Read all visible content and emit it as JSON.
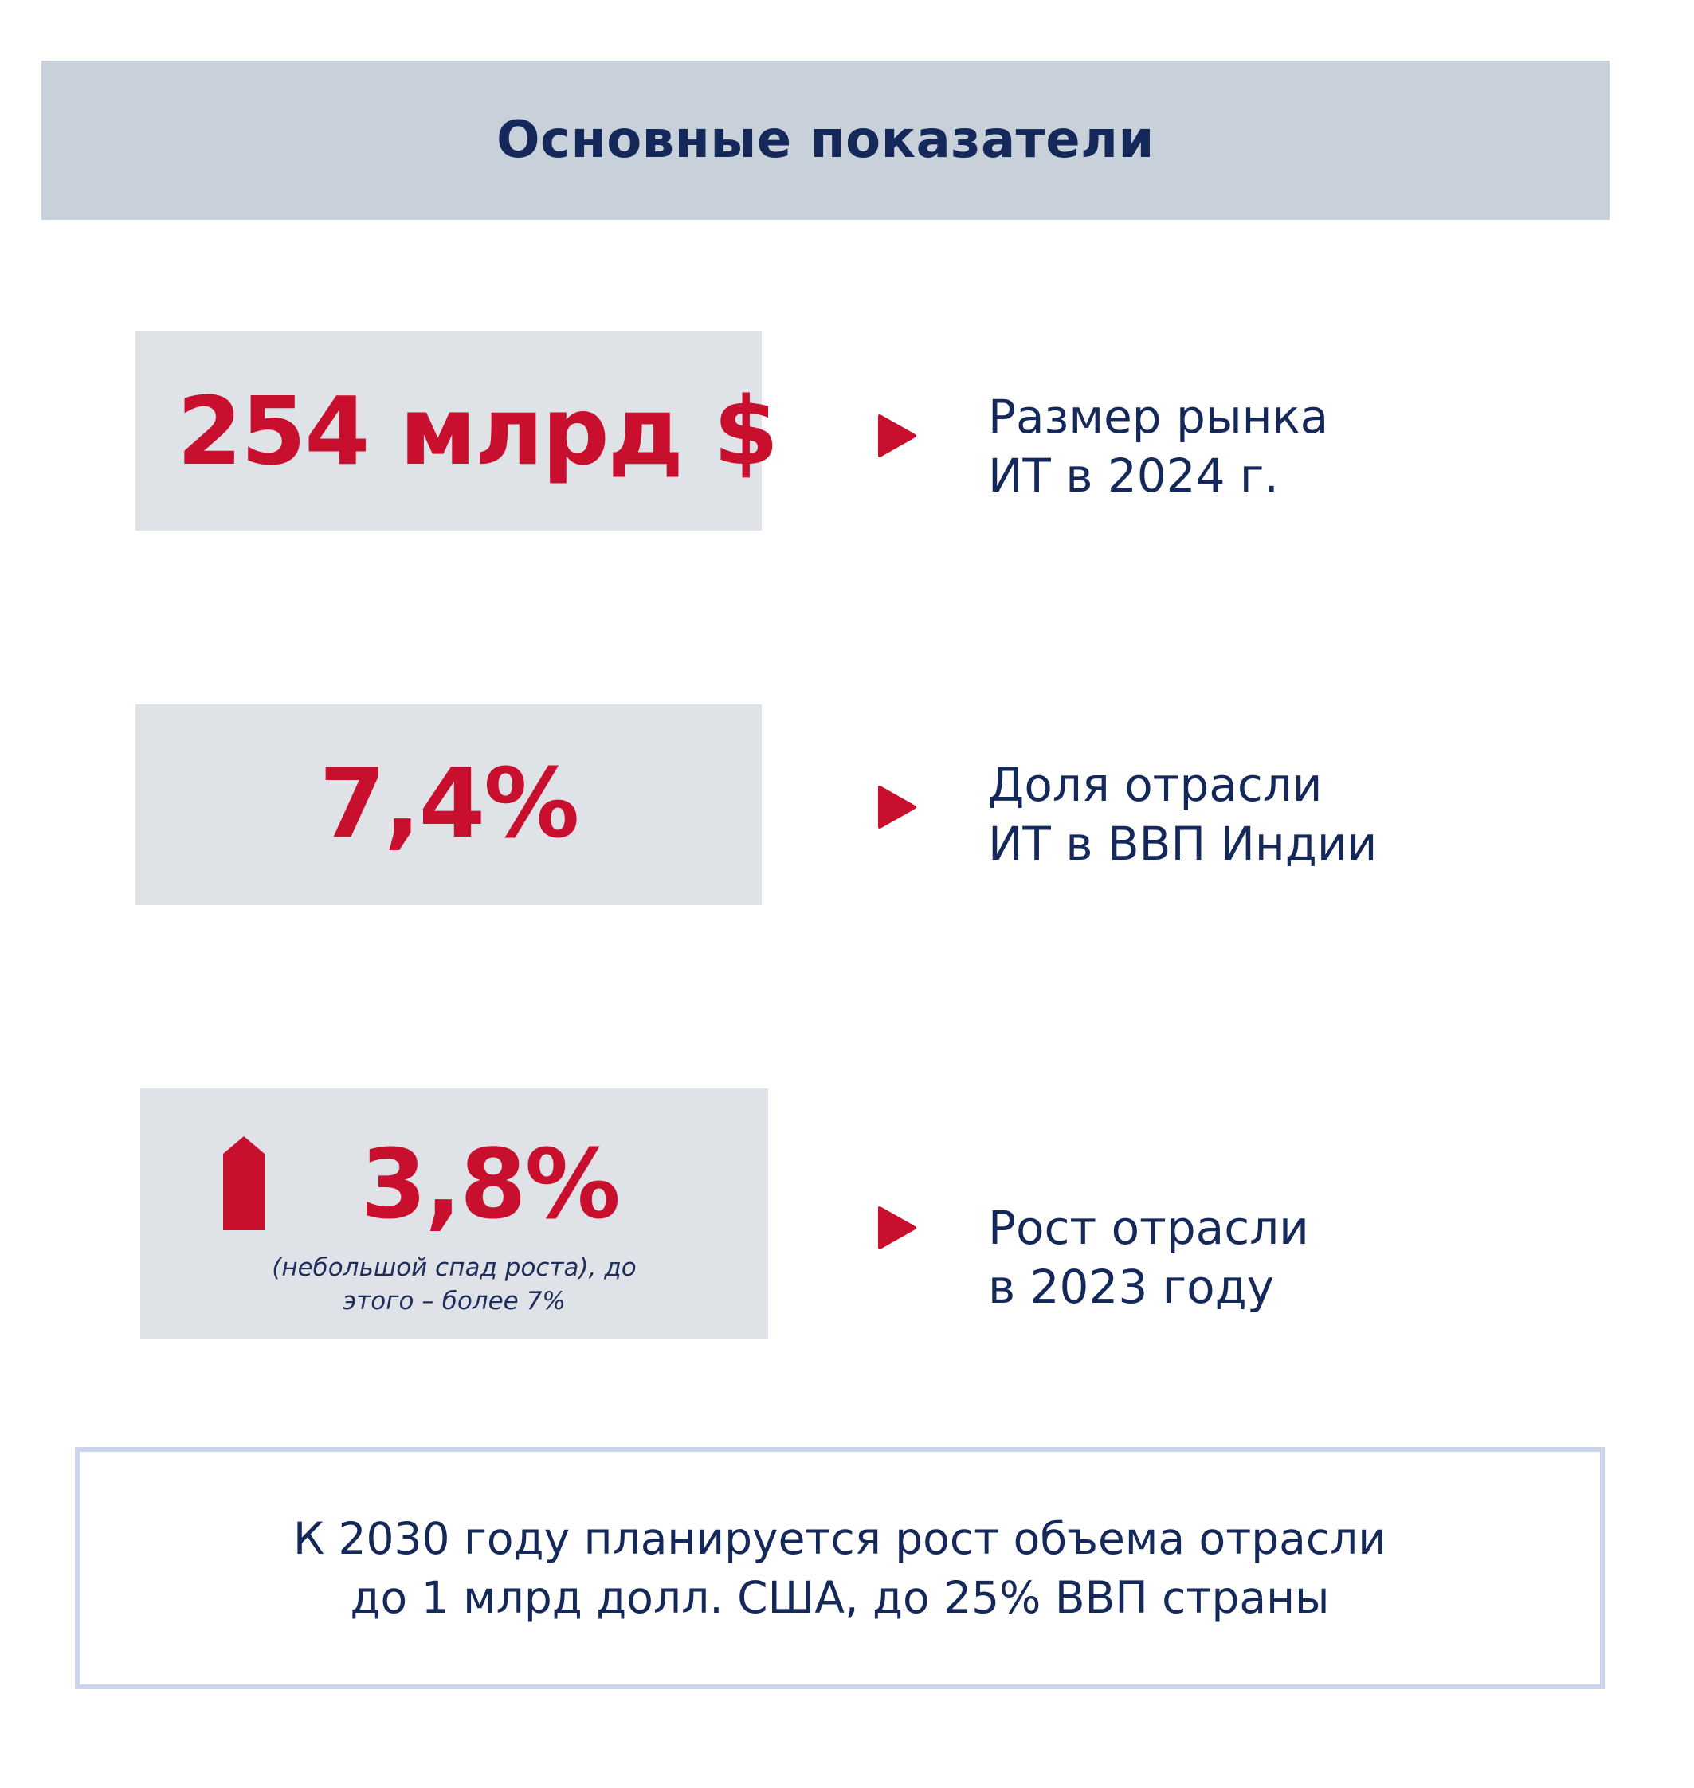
{
  "header": {
    "title": "Основные показатели"
  },
  "metrics": [
    {
      "value": "254 млрд $",
      "label_line1": "Размер рынка",
      "label_line2": "ИТ в 2024 г."
    },
    {
      "value": "7,4%",
      "label_line1": "Доля отрасли",
      "label_line2": "ИТ в ВВП Индии"
    },
    {
      "value": "3,8%",
      "note_line1": "(небольшой спад роста), до",
      "note_line2": "этого – более 7%",
      "trend_icon": "up-arrow-icon",
      "label_line1": "Рост отрасли",
      "label_line2": "в 2023 году"
    }
  ],
  "footer": {
    "line1": "К 2030 году планируется рост объема отрасли",
    "line2": "до 1 млрд долл. США, до 25% ВВП страны"
  },
  "colors": {
    "accent": "#c8102e",
    "text": "#14285a",
    "header_bg": "#c8d0da",
    "box_bg": "#dfe2e7",
    "footer_border": "#c9d5ea"
  }
}
